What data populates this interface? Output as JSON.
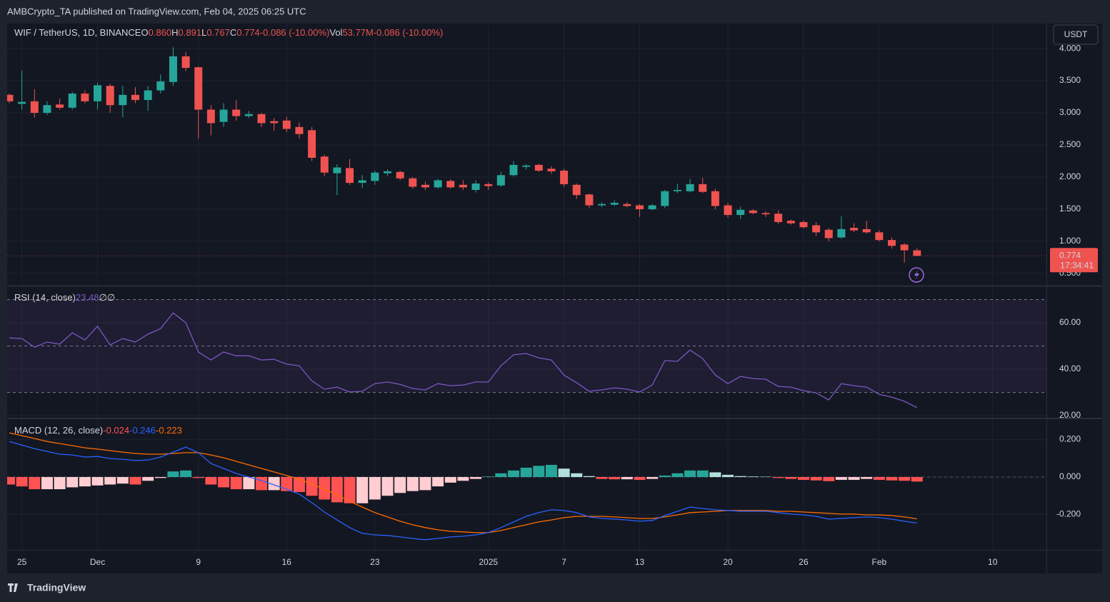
{
  "header": {
    "attribution": "AMBCrypto_TA published on TradingView.com, Feb 04, 2025 06:25 UTC"
  },
  "footer": {
    "brand": "TradingView"
  },
  "chart_data": [
    {
      "type": "candlestick",
      "legend": {
        "symbol": "WIF / TetherUS, 1D, BINANCE",
        "fields": [
          {
            "label": "O",
            "value": "0.860"
          },
          {
            "label": "H",
            "value": "0.891"
          },
          {
            "label": "L",
            "value": "0.767"
          },
          {
            "label": "C",
            "value": "0.774"
          }
        ],
        "change": "-0.086 (-10.00%)",
        "volume": {
          "label": "Vol",
          "value": "53.77M"
        },
        "volume_change": "-0.086 (-10.00%)"
      },
      "currency": "USDT",
      "countdown": "17:34:41",
      "categories": [
        null,
        "25",
        null,
        null,
        null,
        null,
        null,
        "Dec",
        null,
        null,
        null,
        null,
        null,
        null,
        null,
        "9",
        null,
        null,
        null,
        null,
        null,
        null,
        "16",
        null,
        null,
        null,
        null,
        null,
        null,
        "23",
        null,
        null,
        null,
        null,
        null,
        null,
        null,
        null,
        "2025",
        null,
        null,
        null,
        null,
        null,
        "7",
        null,
        null,
        null,
        null,
        null,
        "13",
        null,
        null,
        null,
        null,
        null,
        null,
        "20",
        null,
        null,
        null,
        null,
        null,
        "26",
        null,
        null,
        null,
        null,
        null,
        "Feb",
        null,
        null,
        null,
        null,
        null,
        null,
        null,
        null,
        "10"
      ],
      "open": [
        3.28,
        3.14,
        3.18,
        3.0,
        3.13,
        3.08,
        3.3,
        3.18,
        3.42,
        3.12,
        3.28,
        3.2,
        3.35,
        3.48,
        3.88,
        3.71,
        3.05,
        2.86,
        3.05,
        2.95,
        2.98,
        2.87,
        2.88,
        2.78,
        2.73,
        2.32,
        2.06,
        2.14,
        1.91,
        1.94,
        2.06,
        2.08,
        1.98,
        1.88,
        1.84,
        1.94,
        1.88,
        1.8,
        1.89,
        1.87,
        2.03,
        2.16,
        2.19,
        2.13,
        2.1,
        1.88,
        1.73,
        1.56,
        1.57,
        1.58,
        1.56,
        1.5,
        1.55,
        1.78,
        1.78,
        1.89,
        1.78,
        1.56,
        1.41,
        1.48,
        1.44,
        1.43,
        1.32,
        1.3,
        1.25,
        1.18,
        1.06,
        1.21,
        1.19,
        1.14,
        1.02,
        0.95,
        0.86,
        null,
        null,
        null,
        null,
        null,
        null
      ],
      "high": [
        3.3,
        3.66,
        3.37,
        3.18,
        3.22,
        3.33,
        3.35,
        3.47,
        3.45,
        3.42,
        3.4,
        3.42,
        3.6,
        4.02,
        3.95,
        3.72,
        3.12,
        3.15,
        3.2,
        3.03,
        3.0,
        2.92,
        2.94,
        2.85,
        2.78,
        2.35,
        2.2,
        2.28,
        2.03,
        2.1,
        2.12,
        2.1,
        2.0,
        1.93,
        1.97,
        1.97,
        1.95,
        1.95,
        1.92,
        2.08,
        2.25,
        2.2,
        2.21,
        2.17,
        2.13,
        1.9,
        1.74,
        1.61,
        1.64,
        1.61,
        1.58,
        1.58,
        1.8,
        1.9,
        1.97,
        1.99,
        1.82,
        1.6,
        1.54,
        1.5,
        1.47,
        1.48,
        1.34,
        1.32,
        1.3,
        1.21,
        1.39,
        1.28,
        1.32,
        1.17,
        1.06,
        0.97,
        0.891,
        null,
        null,
        null,
        null,
        null,
        null
      ],
      "low": [
        3.15,
        3.05,
        2.93,
        2.97,
        3.05,
        3.05,
        3.15,
        3.05,
        3.0,
        2.93,
        3.15,
        3.03,
        3.3,
        3.42,
        3.65,
        2.6,
        2.65,
        2.78,
        2.88,
        2.92,
        2.78,
        2.72,
        2.7,
        2.6,
        2.25,
        2.02,
        1.72,
        1.88,
        1.83,
        1.88,
        2.02,
        1.95,
        1.82,
        1.8,
        1.82,
        1.82,
        1.8,
        1.76,
        1.8,
        1.85,
        2.01,
        2.12,
        2.08,
        2.05,
        1.85,
        1.66,
        1.52,
        1.53,
        1.55,
        1.53,
        1.38,
        1.48,
        1.52,
        1.75,
        1.76,
        1.75,
        1.5,
        1.37,
        1.35,
        1.42,
        1.38,
        1.27,
        1.26,
        1.2,
        1.08,
        1.0,
        1.04,
        1.14,
        1.12,
        1.0,
        0.89,
        0.67,
        0.767,
        null,
        null,
        null,
        null,
        null,
        null
      ],
      "close": [
        3.18,
        3.17,
        3.0,
        3.12,
        3.08,
        3.3,
        3.18,
        3.43,
        3.12,
        3.28,
        3.2,
        3.35,
        3.49,
        3.88,
        3.7,
        3.05,
        2.84,
        3.05,
        2.95,
        2.98,
        2.84,
        2.84,
        2.75,
        2.67,
        2.3,
        2.07,
        2.15,
        1.91,
        1.95,
        2.07,
        2.09,
        1.98,
        1.85,
        1.84,
        1.95,
        1.84,
        1.84,
        1.9,
        1.86,
        2.03,
        2.19,
        2.18,
        2.1,
        2.09,
        1.89,
        1.72,
        1.56,
        1.58,
        1.6,
        1.55,
        1.5,
        1.56,
        1.78,
        1.8,
        1.89,
        1.77,
        1.55,
        1.41,
        1.49,
        1.44,
        1.42,
        1.3,
        1.28,
        1.22,
        1.14,
        1.05,
        1.19,
        1.17,
        1.14,
        1.02,
        0.93,
        0.86,
        0.774,
        null,
        null,
        null,
        null,
        null,
        null
      ],
      "up_color": "#26a69a",
      "down_color": "#ef5350",
      "ylim": [
        0.31,
        4.39
      ],
      "yticks": [
        {
          "value": 0.5,
          "label": "0.500"
        },
        {
          "value": 1,
          "label": "1.000"
        },
        {
          "value": 1.5,
          "label": "1.500"
        },
        {
          "value": 2,
          "label": "2.000"
        },
        {
          "value": 2.5,
          "label": "2.500"
        },
        {
          "value": 3,
          "label": "3.000"
        },
        {
          "value": 3.5,
          "label": "3.500"
        },
        {
          "value": 4,
          "label": "4.000"
        }
      ],
      "grid": true
    },
    {
      "type": "line",
      "title": "RSI (14, close)",
      "extra_labels": [
        "∅",
        "∅"
      ],
      "values": [
        53.5,
        53.2,
        49.5,
        51.7,
        50.8,
        55.7,
        52.6,
        58.5,
        50.5,
        53.2,
        51.7,
        55.1,
        57.5,
        64.3,
        60,
        47.4,
        44,
        47.4,
        45.8,
        45.8,
        44,
        44.3,
        42.2,
        41.5,
        35,
        31.4,
        32.3,
        30.2,
        30.5,
        33.8,
        34.5,
        33.5,
        31.7,
        31.1,
        33.8,
        32.9,
        33.2,
        34.5,
        34.5,
        41.5,
        46.2,
        46.8,
        44.9,
        44,
        37.5,
        34.2,
        30.5,
        31.1,
        32,
        31.4,
        30.2,
        33.2,
        43.7,
        43.4,
        48.3,
        44.6,
        37.5,
        33.8,
        36.9,
        36,
        35.7,
        32.6,
        32.3,
        30.8,
        29.8,
        26.8,
        33.8,
        32.9,
        32.3,
        29.2,
        28,
        26.2,
        23.48,
        null,
        null,
        null,
        null,
        null,
        null
      ],
      "color": "#7e57c2",
      "bands": [
        70,
        50,
        30
      ],
      "ylim": [
        19.1,
        75.7
      ],
      "yticks": [
        {
          "value": 20,
          "label": "20.00"
        },
        {
          "value": 40,
          "label": "40.00"
        },
        {
          "value": 60,
          "label": "60.00"
        }
      ],
      "grid": true
    },
    {
      "type": "macd",
      "title": "MACD (12, 26, close)",
      "histogram": [
        -0.04,
        -0.05,
        -0.065,
        -0.065,
        -0.065,
        -0.055,
        -0.05,
        -0.045,
        -0.04,
        -0.035,
        -0.04,
        -0.02,
        -0.005,
        0.03,
        0.035,
        -0.005,
        -0.04,
        -0.055,
        -0.065,
        -0.065,
        -0.07,
        -0.07,
        -0.075,
        -0.08,
        -0.1,
        -0.12,
        -0.135,
        -0.14,
        -0.14,
        -0.12,
        -0.1,
        -0.085,
        -0.075,
        -0.07,
        -0.05,
        -0.03,
        -0.02,
        -0.01,
        0.003,
        0.02,
        0.035,
        0.05,
        0.06,
        0.065,
        0.045,
        0.02,
        0.005,
        -0.01,
        -0.012,
        -0.012,
        -0.015,
        -0.01,
        0.008,
        0.02,
        0.035,
        0.035,
        0.025,
        0.012,
        0.005,
        0.003,
        0.002,
        -0.005,
        -0.01,
        -0.015,
        -0.018,
        -0.022,
        -0.015,
        -0.015,
        -0.01,
        -0.015,
        -0.018,
        -0.02,
        -0.024,
        null,
        null,
        null,
        null,
        null,
        null
      ],
      "macd": [
        0.19,
        0.171,
        0.152,
        0.137,
        0.122,
        0.118,
        0.107,
        0.11,
        0.099,
        0.095,
        0.088,
        0.091,
        0.107,
        0.133,
        0.16,
        0.13,
        0.072,
        0.046,
        0.019,
        0,
        -0.019,
        -0.042,
        -0.065,
        -0.091,
        -0.137,
        -0.187,
        -0.229,
        -0.27,
        -0.301,
        -0.309,
        -0.312,
        -0.32,
        -0.328,
        -0.335,
        -0.328,
        -0.32,
        -0.316,
        -0.309,
        -0.297,
        -0.27,
        -0.24,
        -0.21,
        -0.19,
        -0.175,
        -0.179,
        -0.19,
        -0.213,
        -0.221,
        -0.225,
        -0.229,
        -0.236,
        -0.232,
        -0.206,
        -0.183,
        -0.16,
        -0.168,
        -0.175,
        -0.179,
        -0.183,
        -0.183,
        -0.183,
        -0.19,
        -0.198,
        -0.202,
        -0.21,
        -0.225,
        -0.221,
        -0.217,
        -0.213,
        -0.217,
        -0.225,
        -0.236,
        -0.246,
        null,
        null,
        null,
        null,
        null,
        null
      ],
      "signal": [
        0.236,
        0.221,
        0.206,
        0.19,
        0.179,
        0.168,
        0.156,
        0.149,
        0.141,
        0.133,
        0.126,
        0.122,
        0.122,
        0.126,
        0.13,
        0.13,
        0.118,
        0.103,
        0.084,
        0.065,
        0.046,
        0.027,
        0.008,
        -0.011,
        -0.038,
        -0.065,
        -0.095,
        -0.13,
        -0.16,
        -0.19,
        -0.213,
        -0.236,
        -0.255,
        -0.27,
        -0.282,
        -0.29,
        -0.293,
        -0.297,
        -0.297,
        -0.286,
        -0.27,
        -0.255,
        -0.24,
        -0.229,
        -0.217,
        -0.21,
        -0.21,
        -0.21,
        -0.213,
        -0.217,
        -0.221,
        -0.221,
        -0.213,
        -0.202,
        -0.19,
        -0.187,
        -0.183,
        -0.179,
        -0.179,
        -0.179,
        -0.179,
        -0.183,
        -0.183,
        -0.187,
        -0.19,
        -0.194,
        -0.198,
        -0.198,
        -0.202,
        -0.202,
        -0.206,
        -0.213,
        -0.223,
        null,
        null,
        null,
        null,
        null,
        null
      ],
      "colors": {
        "macd": "#2962ff",
        "signal": "#ff6d00",
        "grow_above": "#26a69a",
        "fall_above": "#b2dfdb",
        "grow_below": "#ffcdd2",
        "fall_below": "#ff5252"
      },
      "zero_line": true,
      "ylim": [
        -0.389,
        0.309
      ],
      "yticks": [
        {
          "value": -0.2,
          "label": "-0.200"
        },
        {
          "value": 0,
          "label": "0.000"
        },
        {
          "value": 0.2,
          "label": "0.200"
        }
      ],
      "grid": true
    }
  ]
}
